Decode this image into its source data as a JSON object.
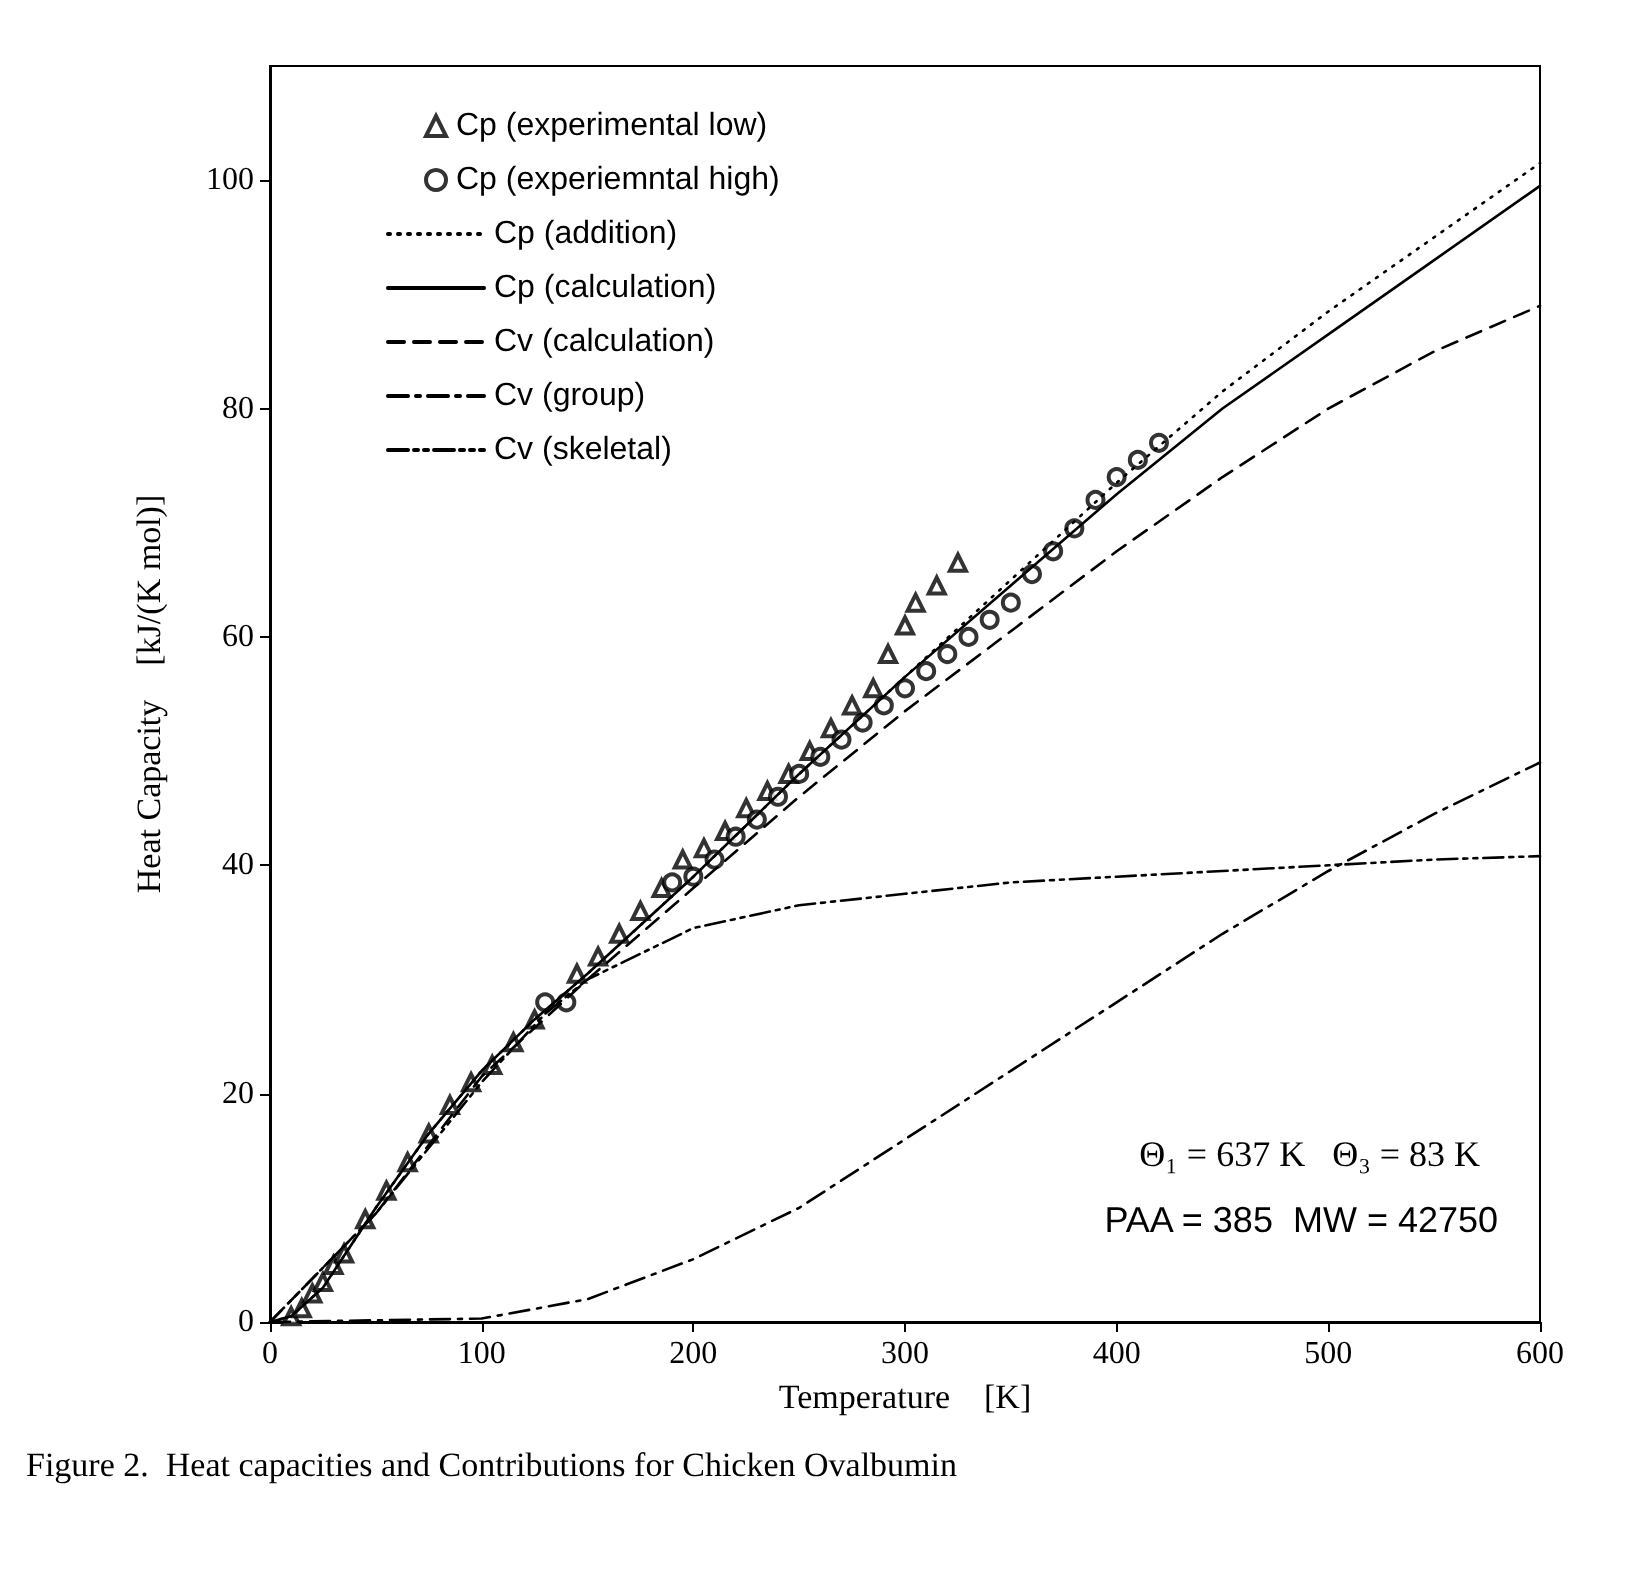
{
  "chart_data": {
    "type": "line",
    "xlabel": "Temperature    [K]",
    "ylabel": "Heat Capacity    [kJ/(K mol)]",
    "xlim": [
      0,
      600
    ],
    "xticks": [
      0,
      100,
      200,
      300,
      400,
      500,
      600
    ],
    "ylim": [
      0,
      110
    ],
    "yticks": [
      0,
      20,
      40,
      60,
      80,
      100
    ],
    "grid": false,
    "legend": "top left",
    "annotations": [
      "Θ₁ = 637 K   Θ₃ = 83 K",
      "PAA = 385  MW = 42750",
      "Figure 2.  Heat capacities and Contributions for Chicken Ovalbumin"
    ],
    "series": [
      {
        "name": "Cp (experimental low)",
        "type": "scatter",
        "marker": "triangle",
        "color": "#000000",
        "x": [
          10,
          15,
          20,
          25,
          30,
          35,
          45,
          55,
          65,
          75,
          85,
          95,
          105,
          115,
          125,
          135,
          145,
          155,
          165,
          175,
          185,
          195,
          205,
          215,
          225,
          235,
          245,
          255,
          265,
          275,
          285,
          292,
          300,
          305,
          315,
          325
        ],
        "values": [
          0.5,
          1.2,
          2.5,
          3.5,
          5,
          6,
          9,
          11.5,
          14,
          16.5,
          19,
          21,
          22.5,
          24.5,
          26.5,
          null,
          30.5,
          32,
          34,
          36,
          38,
          40.5,
          41.5,
          43,
          45,
          46.5,
          48,
          50,
          52,
          54,
          55.5,
          58.5,
          61,
          63,
          64.5,
          66.5
        ]
      },
      {
        "name": "Cp (experiemntal high)",
        "type": "scatter",
        "marker": "circle",
        "color": "#000000",
        "x": [
          130,
          140,
          190,
          200,
          210,
          220,
          230,
          240,
          250,
          260,
          270,
          280,
          290,
          300,
          310,
          320,
          330,
          340,
          350,
          360,
          370,
          380,
          390,
          400,
          410,
          420
        ],
        "values": [
          28,
          28,
          38.5,
          39,
          40.5,
          42.5,
          44,
          46,
          48,
          49.5,
          51,
          52.5,
          54,
          55.5,
          57,
          58.5,
          60,
          61.5,
          63,
          65.5,
          67.5,
          69.5,
          72,
          74,
          75.5,
          77
        ]
      },
      {
        "name": "Cp (addition)",
        "line_style": "dotted",
        "color": "#000000",
        "x": [
          0,
          10,
          25,
          50,
          75,
          100,
          125,
          150,
          200,
          250,
          300,
          350,
          400,
          450,
          500,
          550,
          600
        ],
        "values": [
          0,
          0.5,
          3,
          10,
          16.5,
          22,
          26.5,
          30.5,
          39,
          48,
          56.5,
          65,
          73.5,
          81.5,
          88.5,
          95,
          101.5
        ]
      },
      {
        "name": "Cp (calculation)",
        "line_style": "solid",
        "color": "#000000",
        "x": [
          0,
          10,
          25,
          50,
          75,
          100,
          125,
          150,
          200,
          250,
          300,
          350,
          400,
          450,
          500,
          550,
          600
        ],
        "values": [
          0,
          0.5,
          3,
          10,
          16.5,
          22,
          26.5,
          30.5,
          39,
          48,
          56.5,
          64.5,
          72.5,
          80,
          86.5,
          93,
          99.5
        ]
      },
      {
        "name": "Cv (calculation)",
        "line_style": "dashed",
        "color": "#000000",
        "x": [
          0,
          50,
          100,
          150,
          200,
          250,
          300,
          350,
          400,
          450,
          500,
          550,
          600
        ],
        "values": [
          0,
          9.5,
          21.5,
          30,
          38,
          46,
          53.5,
          60.5,
          67.5,
          74,
          80,
          85,
          89
        ]
      },
      {
        "name": "Cv (group)",
        "line_style": "dashdot",
        "color": "#000000",
        "x": [
          0,
          100,
          150,
          200,
          250,
          300,
          350,
          400,
          450,
          500,
          550,
          600
        ],
        "values": [
          0,
          0.3,
          2,
          5.5,
          10,
          16,
          22,
          28,
          34,
          39.5,
          44.5,
          49
        ]
      },
      {
        "name": "Cv (skeletal)",
        "line_style": "dashdotdot",
        "color": "#000000",
        "x": [
          0,
          50,
          100,
          130,
          150,
          200,
          250,
          300,
          350,
          400,
          450,
          500,
          550,
          600
        ],
        "values": [
          0,
          9.5,
          21,
          27,
          30,
          34.5,
          36.5,
          37.5,
          38.5,
          39,
          39.5,
          40,
          40.5,
          40.8
        ]
      }
    ]
  }
}
